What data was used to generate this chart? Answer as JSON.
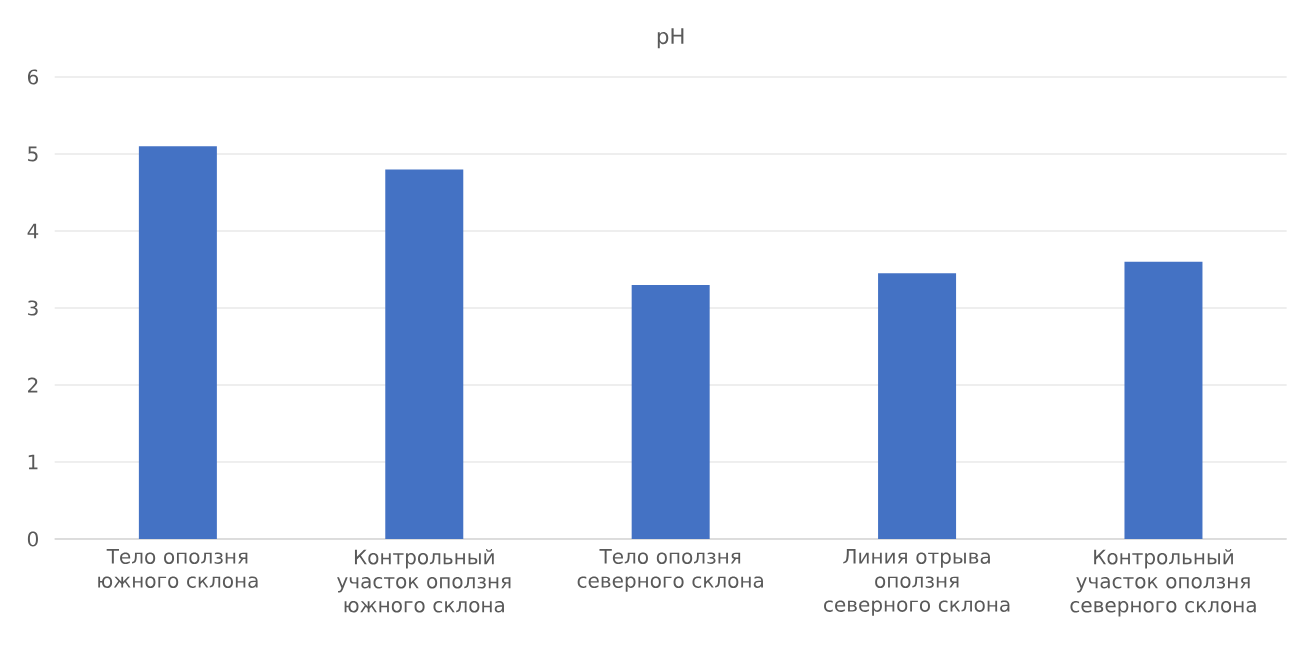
{
  "chart_data": {
    "type": "bar",
    "title": "pH",
    "categories": [
      "Тело оползня южного склона",
      "Контрольный участок оползня южного склона",
      "Тело оползня северного склона",
      "Линия отрыва оползня северного склона",
      "Контрольный участок оползня северного склона"
    ],
    "values": [
      5.1,
      4.8,
      3.3,
      3.45,
      3.6
    ],
    "color": "#4472c4",
    "ylim": [
      0,
      6
    ],
    "yticks": [
      0,
      1,
      2,
      3,
      4,
      5,
      6
    ],
    "grid": "y"
  }
}
